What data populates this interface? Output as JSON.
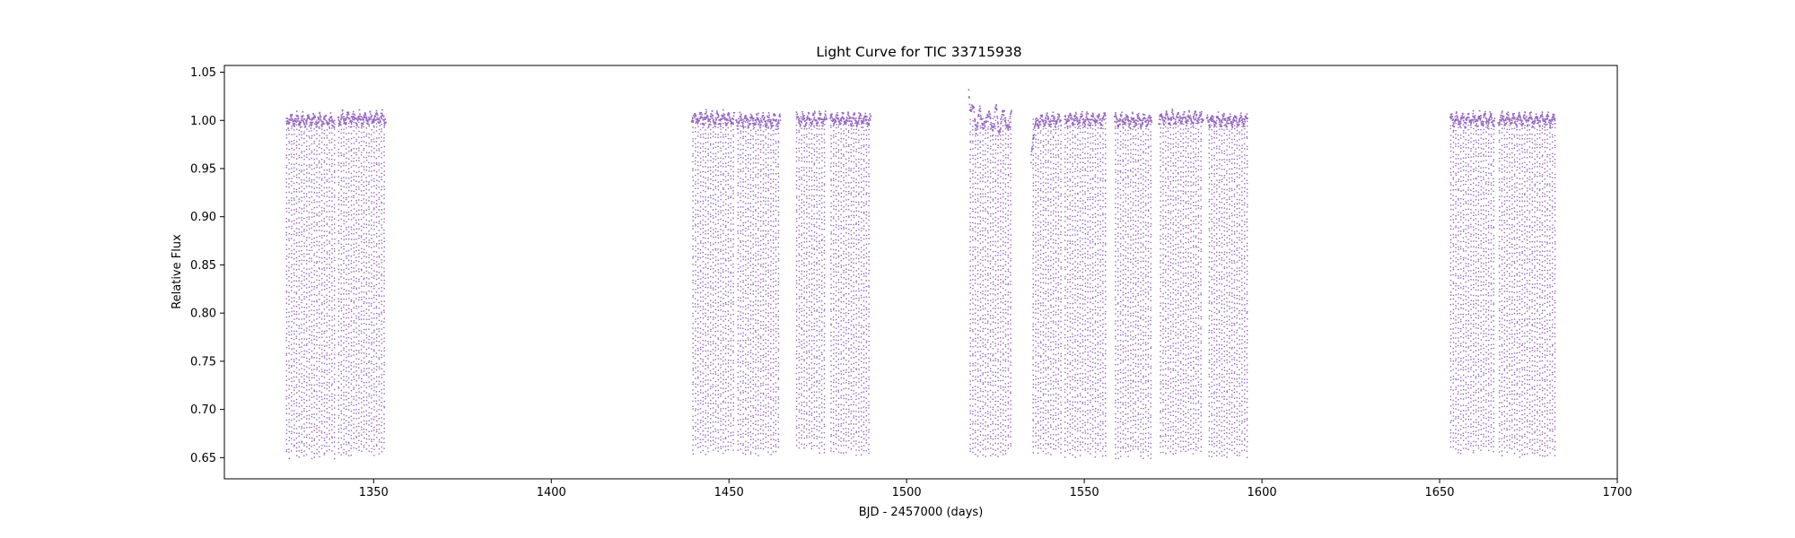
{
  "chart_data": {
    "type": "scatter",
    "title": "Light Curve for TIC 33715938",
    "xlabel": "BJD - 2457000 (days)",
    "ylabel": "Relative Flux",
    "xlim": [
      1308,
      1700
    ],
    "ylim": [
      0.628,
      1.057
    ],
    "x_ticks": [
      1350,
      1400,
      1450,
      1500,
      1550,
      1600,
      1650,
      1700
    ],
    "x_tick_labels": [
      "1350",
      "1400",
      "1450",
      "1500",
      "1550",
      "1600",
      "1650",
      "1700"
    ],
    "y_ticks": [
      0.65,
      0.7,
      0.75,
      0.8,
      0.85,
      0.9,
      0.95,
      1.0,
      1.05
    ],
    "y_tick_labels": [
      "0.65",
      "0.70",
      "0.75",
      "0.80",
      "0.85",
      "0.90",
      "0.95",
      "1.00",
      "1.05"
    ],
    "grid": false,
    "series": [
      {
        "color": "#9467bd",
        "segments": [
          {
            "x": [
              1325.5,
              1339.0
            ],
            "baseline": 1.0,
            "eclipse_min": 0.65
          },
          {
            "x": [
              1340.0,
              1353.5
            ],
            "baseline": 1.002,
            "eclipse_min": 0.652
          },
          {
            "x": [
              1439.5,
              1451.5
            ],
            "baseline": 1.002,
            "eclipse_min": 0.653
          },
          {
            "x": [
              1452.0,
              1464.5
            ],
            "baseline": 1.0,
            "eclipse_min": 0.652
          },
          {
            "x": [
              1469.0,
              1477.5
            ],
            "baseline": 1.001,
            "eclipse_min": 0.655
          },
          {
            "x": [
              1478.5,
              1490.0
            ],
            "baseline": 1.001,
            "eclipse_min": 0.652
          },
          {
            "x": [
              1517.5,
              1529.5
            ],
            "baseline": 1.0,
            "eclipse_min": 0.651,
            "start_flux": 1.035
          },
          {
            "x": [
              1535.0,
              1543.5
            ],
            "baseline": 1.0,
            "eclipse_min": 0.652,
            "start_flux": 0.955
          },
          {
            "x": [
              1544.5,
              1556.0
            ],
            "baseline": 1.001,
            "eclipse_min": 0.651
          },
          {
            "x": [
              1558.5,
              1569.0
            ],
            "baseline": 1.0,
            "eclipse_min": 0.65
          },
          {
            "x": [
              1571.0,
              1583.5
            ],
            "baseline": 1.002,
            "eclipse_min": 0.652
          },
          {
            "x": [
              1584.5,
              1596.0
            ],
            "baseline": 1.0,
            "eclipse_min": 0.65
          },
          {
            "x": [
              1653.0,
              1665.5
            ],
            "baseline": 1.001,
            "eclipse_min": 0.652
          },
          {
            "x": [
              1666.5,
              1682.5
            ],
            "baseline": 1.001,
            "eclipse_min": 0.651
          }
        ]
      }
    ]
  }
}
